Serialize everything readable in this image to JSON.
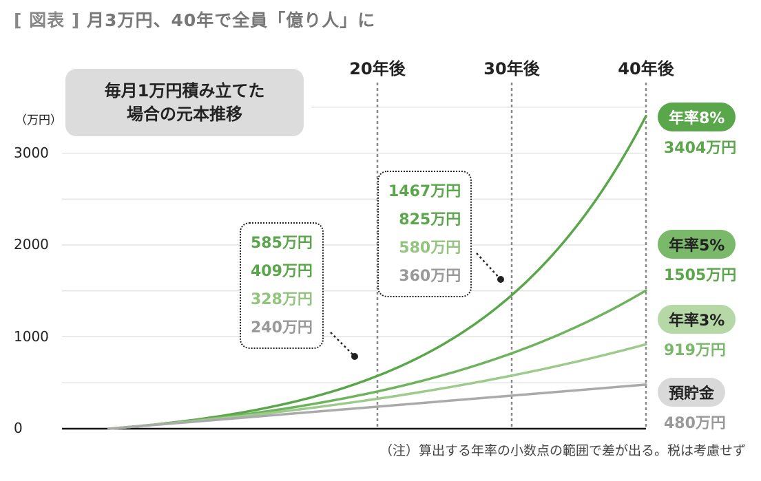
{
  "title": {
    "bracket_open": "[",
    "tag": "図表",
    "bracket_close": "]",
    "text": "月3万円、40年で全員「億り人」に"
  },
  "subtitle": {
    "line1": "毎月1万円積み立てた",
    "line2": "場合の元本推移"
  },
  "unit_label": "（万円）",
  "note": "（注）算出する年率の小数点の範囲で差が出る。税は考慮せず",
  "milestones": [
    {
      "label": "20年後",
      "year": 20
    },
    {
      "label": "30年後",
      "year": 30
    },
    {
      "label": "40年後",
      "year": 40
    }
  ],
  "callouts": [
    {
      "year": 20,
      "values": [
        "585万円",
        "409万円",
        "328万円",
        "240万円"
      ],
      "colors": [
        "#5aa64a",
        "#5aa64a",
        "#93c47d",
        "#999999"
      ]
    },
    {
      "year": 30,
      "values": [
        "1467万円",
        "825万円",
        "580万円",
        "360万円"
      ],
      "colors": [
        "#5aa64a",
        "#5aa64a",
        "#93c47d",
        "#999999"
      ]
    }
  ],
  "legend": [
    {
      "badge": "年率8%",
      "value": "3404万円",
      "badge_bg": "#5aa64a",
      "badge_fg": "#ffffff",
      "value_color": "#5aa64a"
    },
    {
      "badge": "年率5%",
      "value": "1505万円",
      "badge_bg": "#7ab86a",
      "badge_fg": "#222222",
      "value_color": "#5aa64a"
    },
    {
      "badge": "年率3%",
      "value": "919万円",
      "badge_bg": "#b5d8a6",
      "badge_fg": "#222222",
      "value_color": "#7ab86a"
    },
    {
      "badge": "預貯金",
      "value": "480万円",
      "badge_bg": "#d9d9d9",
      "badge_fg": "#222222",
      "value_color": "#999999"
    }
  ],
  "chart_data": {
    "type": "line",
    "xlabel": "",
    "ylabel": "（万円）",
    "xlim": [
      0,
      40
    ],
    "ylim": [
      0,
      3000
    ],
    "y_ticks": [
      "0",
      "1000",
      "2000",
      "3000"
    ],
    "grid": true,
    "series": [
      {
        "name": "年率8%",
        "color": "#5aa64a",
        "x": [
          0,
          20,
          30,
          40
        ],
        "values": [
          0,
          585,
          1467,
          3404
        ]
      },
      {
        "name": "年率5%",
        "color": "#6fb35e",
        "x": [
          0,
          20,
          30,
          40
        ],
        "values": [
          0,
          409,
          825,
          1505
        ]
      },
      {
        "name": "年率3%",
        "color": "#9ccb8c",
        "x": [
          0,
          20,
          30,
          40
        ],
        "values": [
          0,
          328,
          580,
          919
        ]
      },
      {
        "name": "預貯金",
        "color": "#aaaaaa",
        "x": [
          0,
          20,
          30,
          40
        ],
        "values": [
          0,
          240,
          360,
          480
        ]
      }
    ]
  }
}
